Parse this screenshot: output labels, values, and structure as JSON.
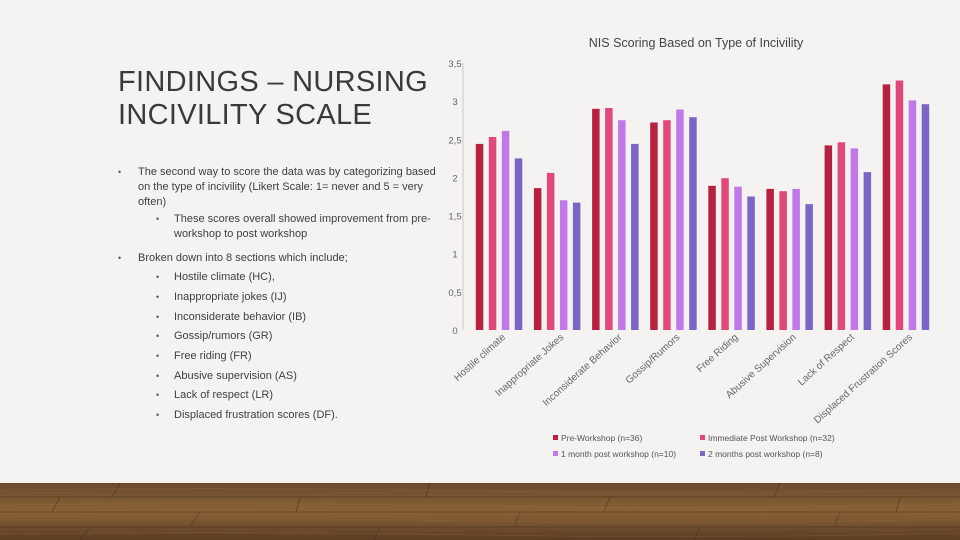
{
  "slide": {
    "title": "FINDINGS – NURSING INCIVILITY SCALE",
    "bullets": [
      {
        "level": 1,
        "text": "The second way to score the data was by categorizing based on the type of incivility (Likert Scale: 1= never and 5 = very often)"
      },
      {
        "level": 2,
        "text": "These scores overall showed improvement from pre-workshop to post workshop"
      },
      {
        "level": 1,
        "text": "Broken down into 8 sections which include;"
      },
      {
        "level": 2,
        "text": "Hostile climate (HC),"
      },
      {
        "level": 2,
        "text": "Inappropriate jokes (IJ)"
      },
      {
        "level": 2,
        "text": "Inconsiderate behavior (IB)"
      },
      {
        "level": 2,
        "text": "Gossip/rumors (GR)"
      },
      {
        "level": 2,
        "text": "Free riding (FR)"
      },
      {
        "level": 2,
        "text": "Abusive supervision (AS)"
      },
      {
        "level": 2,
        "text": "Lack of respect (LR)"
      },
      {
        "level": 2,
        "text": "Displaced frustration scores (DF)."
      }
    ],
    "bullet_glyph": "•"
  },
  "chart_data": {
    "type": "bar",
    "title": "NIS Scoring Based on Type of Incivility",
    "xlabel": "",
    "ylabel": "",
    "ylim": [
      0,
      3.5
    ],
    "yticks": [
      "0",
      "0,5",
      "1",
      "1,5",
      "2",
      "2,5",
      "3",
      "3,5"
    ],
    "grid": false,
    "legend_position": "bottom",
    "categories": [
      "Hostile climate",
      "Inappropriate Jokes",
      "Inconsiderate Behavior",
      "Gossip/Rumors",
      "Free Riding",
      "Abusive Supervision",
      "Lack of Respect",
      "Displaced Frustration Scores"
    ],
    "series": [
      {
        "name": "Pre-Workshop (n=36)",
        "color": "#b5213f",
        "values": [
          2.44,
          1.86,
          2.9,
          2.72,
          1.89,
          1.85,
          2.42,
          3.22
        ]
      },
      {
        "name": "Immediate Post Workshop (n=32)",
        "color": "#e0487a",
        "values": [
          2.53,
          2.06,
          2.91,
          2.75,
          1.99,
          1.82,
          2.46,
          3.27
        ]
      },
      {
        "name": "1 month post workshop (n=10)",
        "color": "#bf7ae8",
        "values": [
          2.61,
          1.7,
          2.75,
          2.89,
          1.88,
          1.85,
          2.38,
          3.01
        ]
      },
      {
        "name": "2 months post workshop (n=8)",
        "color": "#7a66c4",
        "values": [
          2.25,
          1.67,
          2.44,
          2.79,
          1.75,
          1.65,
          2.07,
          2.96
        ]
      }
    ]
  }
}
